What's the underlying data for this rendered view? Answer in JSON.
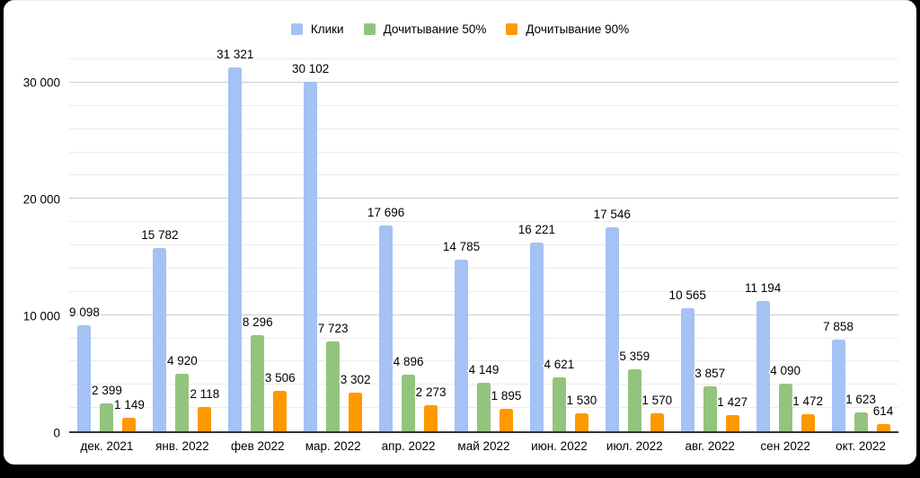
{
  "colors": {
    "background": "#000000",
    "canvas": "#ffffff",
    "grid_minor": "#ececec",
    "grid_major": "#cccccc",
    "axis_line": "#333333",
    "text": "#000000"
  },
  "chart_data": {
    "type": "bar",
    "categories": [
      "дек. 2021",
      "янв. 2022",
      "фев 2022",
      "мар. 2022",
      "апр. 2022",
      "май 2022",
      "июн. 2022",
      "июл. 2022",
      "авг. 2022",
      "сен 2022",
      "окт. 2022"
    ],
    "series": [
      {
        "name": "Клики",
        "color": "#a4c2f4",
        "values": [
          9098,
          15782,
          31321,
          30102,
          17696,
          14785,
          16221,
          17546,
          10565,
          11194,
          7858
        ]
      },
      {
        "name": "Дочитывание 50%",
        "color": "#93c47d",
        "values": [
          2399,
          4920,
          8296,
          7723,
          4896,
          4149,
          4621,
          5359,
          3857,
          4090,
          1623
        ]
      },
      {
        "name": "Дочитывание 90%",
        "color": "#ff9900",
        "values": [
          1149,
          2118,
          3506,
          3302,
          2273,
          1895,
          1530,
          1570,
          1427,
          1472,
          614
        ]
      }
    ],
    "y_axis": {
      "min": 0,
      "max": 32000,
      "minor_step": 2000,
      "major_step": 10000,
      "ticks": [
        {
          "value": 0,
          "label": "0"
        },
        {
          "value": 10000,
          "label": "10 000"
        },
        {
          "value": 20000,
          "label": "20 000"
        },
        {
          "value": 30000,
          "label": "30 000"
        }
      ]
    },
    "grid": true,
    "legend_position": "top",
    "data_labels": true
  }
}
